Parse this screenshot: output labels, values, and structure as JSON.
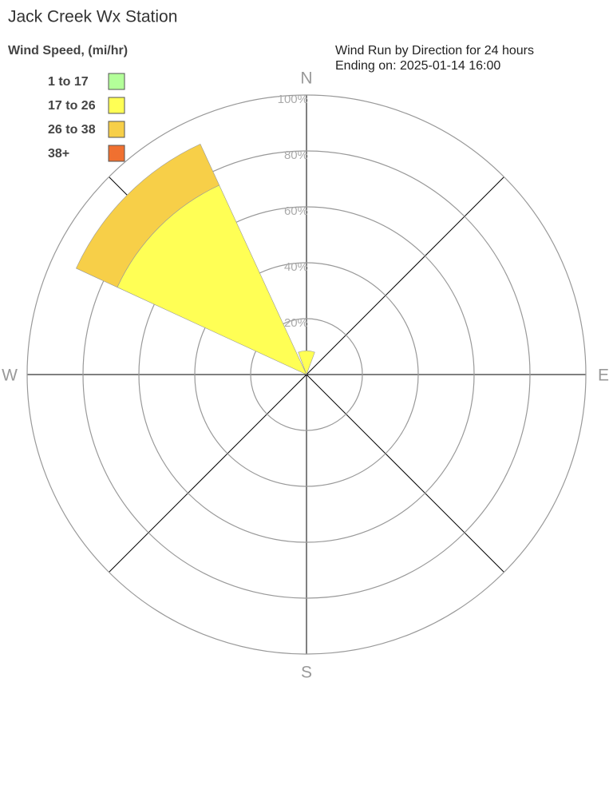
{
  "chart_data": {
    "type": "windrose",
    "title": "Jack Creek Wx Station",
    "legend_title": "Wind Speed, (mi/hr)",
    "subtitle": [
      "Wind Run by Direction for 24 hours",
      "Ending on: 2025-01-14 16:00"
    ],
    "categories": [
      "N",
      null,
      "E",
      null,
      "S",
      null,
      "W",
      null
    ],
    "series": [
      {
        "name": "1 to 17",
        "color": "#b3ff99",
        "values": [
          0,
          0,
          0,
          0,
          0,
          0,
          0,
          0
        ]
      },
      {
        "name": "17 to 26",
        "color": "#ffff55",
        "values": [
          8.5,
          0,
          0,
          0,
          0,
          0,
          0,
          74.6
        ]
      },
      {
        "name": "26 to 38",
        "color": "#f7cf48",
        "values": [
          0,
          0,
          0,
          0,
          0,
          0,
          0,
          16.2
        ]
      },
      {
        "name": "38+",
        "color": "#f07030",
        "values": [
          0,
          0,
          0,
          0,
          0,
          0,
          0,
          0
        ]
      }
    ],
    "rlim": [
      0,
      100
    ],
    "rticks": [
      {
        "value": 20,
        "label": "20%"
      },
      {
        "value": 40,
        "label": "40%"
      },
      {
        "value": 60,
        "label": "60%"
      },
      {
        "value": 80,
        "label": "80%"
      },
      {
        "value": 100,
        "label": "100%"
      }
    ],
    "stacked": true
  }
}
